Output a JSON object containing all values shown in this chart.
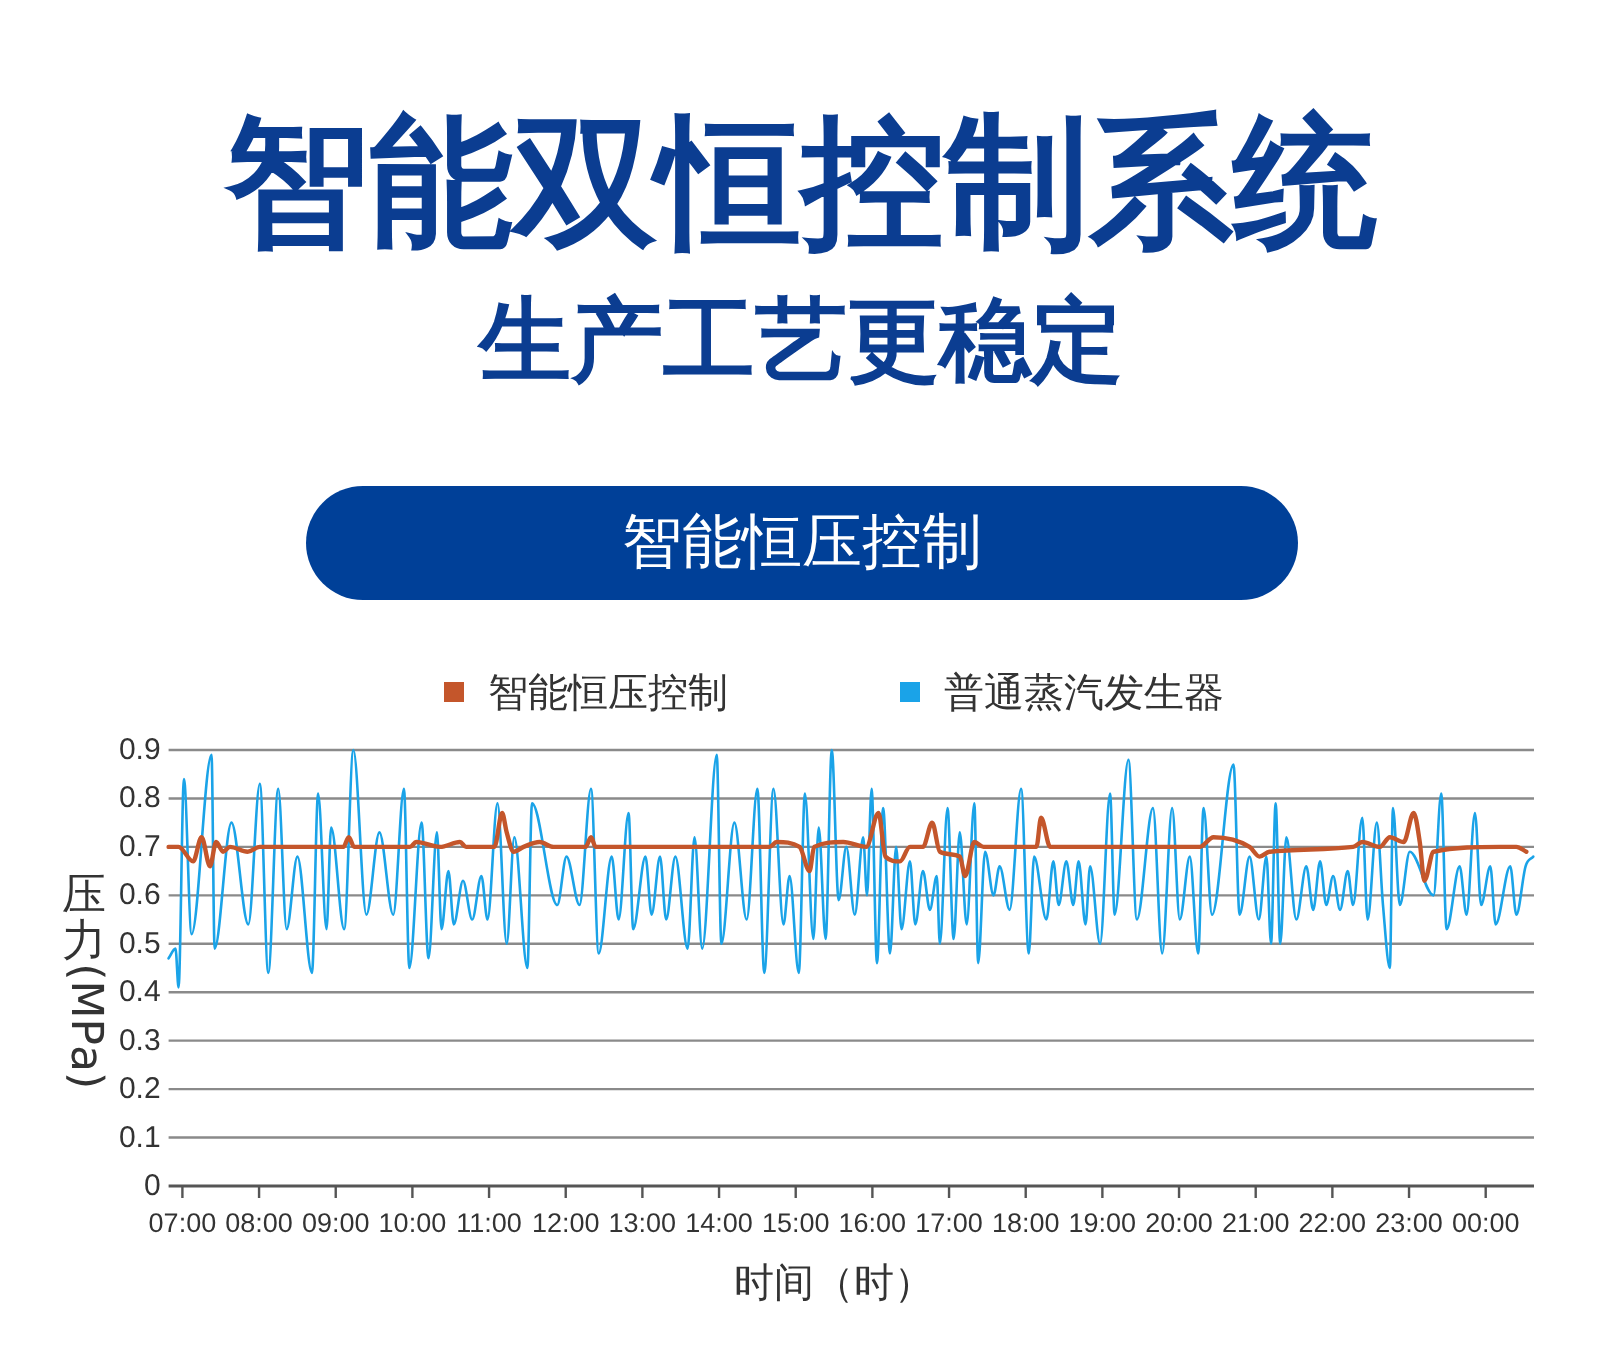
{
  "chart_data": {
    "type": "line",
    "title": "智能双恒控制系统",
    "subtitle": "生产工艺更稳定",
    "annotations": [
      "智能恒压控制"
    ],
    "xlabel": "时间（时）",
    "ylabel": "压力(MPa)",
    "xlim": [
      6.82,
      24.63
    ],
    "xticks": [
      {
        "value": 7,
        "label": "07:00"
      },
      {
        "value": 8,
        "label": "08:00"
      },
      {
        "value": 9,
        "label": "09:00"
      },
      {
        "value": 10,
        "label": "10:00"
      },
      {
        "value": 11,
        "label": "11:00"
      },
      {
        "value": 12,
        "label": "12:00"
      },
      {
        "value": 13,
        "label": "13:00"
      },
      {
        "value": 14,
        "label": "14:00"
      },
      {
        "value": 15,
        "label": "15:00"
      },
      {
        "value": 16,
        "label": "16:00"
      },
      {
        "value": 17,
        "label": "17:00"
      },
      {
        "value": 18,
        "label": "18:00"
      },
      {
        "value": 19,
        "label": "19:00"
      },
      {
        "value": 20,
        "label": "20:00"
      },
      {
        "value": 21,
        "label": "21:00"
      },
      {
        "value": 22,
        "label": "22:00"
      },
      {
        "value": 23,
        "label": "23:00"
      },
      {
        "value": 24,
        "label": "00:00"
      }
    ],
    "ylim": [
      0,
      0.9
    ],
    "yticks": [
      0,
      0.1,
      0.2,
      0.3,
      0.4,
      0.5,
      0.6,
      0.7,
      0.8,
      0.9
    ],
    "grid": "y",
    "legend": "top",
    "line_style": "solid",
    "series": [
      {
        "name": "智能恒压控制",
        "color": "#c4562b",
        "x": [
          6.82,
          6.95,
          7.14,
          7.25,
          7.36,
          7.44,
          7.53,
          7.62,
          7.85,
          8.01,
          9.1,
          9.17,
          9.24,
          9.97,
          10.05,
          10.36,
          10.62,
          10.7,
          11.07,
          11.17,
          11.23,
          11.32,
          11.45,
          11.66,
          11.84,
          12.26,
          12.33,
          12.39,
          14.66,
          14.75,
          15.05,
          15.18,
          15.24,
          15.62,
          15.92,
          16.08,
          16.17,
          16.36,
          16.49,
          16.66,
          16.78,
          16.88,
          17.14,
          17.21,
          17.33,
          17.45,
          18.14,
          18.2,
          18.32,
          20.27,
          20.45,
          20.92,
          21.05,
          21.18,
          22.27,
          22.39,
          22.62,
          22.75,
          22.93,
          23.06,
          23.14,
          23.2,
          23.32,
          24.19,
          24.4,
          24.53
        ],
        "values": [
          0.7,
          0.7,
          0.67,
          0.72,
          0.66,
          0.71,
          0.69,
          0.7,
          0.69,
          0.7,
          0.7,
          0.72,
          0.7,
          0.7,
          0.71,
          0.7,
          0.71,
          0.7,
          0.7,
          0.77,
          0.73,
          0.69,
          0.7,
          0.71,
          0.7,
          0.7,
          0.72,
          0.7,
          0.7,
          0.71,
          0.7,
          0.65,
          0.7,
          0.71,
          0.7,
          0.77,
          0.68,
          0.67,
          0.7,
          0.7,
          0.75,
          0.69,
          0.68,
          0.64,
          0.71,
          0.7,
          0.7,
          0.76,
          0.7,
          0.7,
          0.72,
          0.7,
          0.68,
          0.69,
          0.7,
          0.71,
          0.7,
          0.72,
          0.71,
          0.77,
          0.71,
          0.63,
          0.69,
          0.7,
          0.7,
          0.69
        ]
      },
      {
        "name": "普通蒸汽发生器",
        "color": "#1aa3e8",
        "x": [
          6.82,
          6.91,
          6.95,
          7.02,
          7.12,
          7.38,
          7.42,
          7.64,
          7.86,
          8.01,
          8.12,
          8.25,
          8.36,
          8.5,
          8.69,
          8.77,
          8.88,
          8.94,
          9.11,
          9.23,
          9.4,
          9.57,
          9.75,
          9.89,
          9.96,
          10.12,
          10.21,
          10.32,
          10.38,
          10.47,
          10.54,
          10.66,
          10.78,
          10.9,
          10.98,
          11.11,
          11.23,
          11.33,
          11.5,
          11.56,
          11.89,
          12.01,
          12.18,
          12.33,
          12.43,
          12.6,
          12.69,
          12.82,
          12.88,
          13.04,
          13.12,
          13.23,
          13.31,
          13.43,
          13.59,
          13.68,
          13.78,
          13.97,
          14.03,
          14.2,
          14.36,
          14.5,
          14.59,
          14.71,
          14.84,
          14.92,
          15.04,
          15.12,
          15.23,
          15.3,
          15.39,
          15.47,
          15.56,
          15.66,
          15.77,
          15.88,
          15.93,
          15.99,
          16.06,
          16.14,
          16.23,
          16.31,
          16.38,
          16.49,
          16.56,
          16.66,
          16.75,
          16.84,
          16.88,
          16.98,
          17.06,
          17.14,
          17.23,
          17.33,
          17.38,
          17.47,
          17.58,
          17.66,
          17.79,
          17.94,
          18.04,
          18.11,
          18.27,
          18.36,
          18.43,
          18.53,
          18.62,
          18.69,
          18.78,
          18.84,
          18.97,
          19.1,
          19.16,
          19.34,
          19.45,
          19.66,
          19.78,
          19.91,
          20.01,
          20.14,
          20.25,
          20.32,
          20.43,
          20.71,
          20.79,
          20.92,
          21.04,
          21.14,
          21.2,
          21.26,
          21.32,
          21.4,
          21.53,
          21.66,
          21.75,
          21.84,
          21.92,
          22.01,
          22.1,
          22.2,
          22.27,
          22.39,
          22.46,
          22.58,
          22.66,
          22.75,
          22.79,
          22.88,
          23.01,
          23.32,
          23.42,
          23.49,
          23.66,
          23.75,
          23.86,
          23.94,
          24.06,
          24.13,
          24.32,
          24.4,
          24.52,
          24.62
        ],
        "values": [
          0.47,
          0.49,
          0.41,
          0.84,
          0.52,
          0.89,
          0.49,
          0.75,
          0.54,
          0.83,
          0.44,
          0.82,
          0.53,
          0.68,
          0.44,
          0.81,
          0.53,
          0.74,
          0.53,
          0.9,
          0.56,
          0.73,
          0.56,
          0.82,
          0.45,
          0.75,
          0.47,
          0.73,
          0.53,
          0.65,
          0.54,
          0.63,
          0.55,
          0.64,
          0.55,
          0.79,
          0.5,
          0.72,
          0.45,
          0.79,
          0.58,
          0.68,
          0.58,
          0.82,
          0.48,
          0.68,
          0.55,
          0.77,
          0.53,
          0.68,
          0.56,
          0.68,
          0.55,
          0.68,
          0.49,
          0.72,
          0.49,
          0.89,
          0.5,
          0.75,
          0.55,
          0.82,
          0.44,
          0.82,
          0.54,
          0.64,
          0.44,
          0.81,
          0.51,
          0.74,
          0.51,
          0.9,
          0.59,
          0.7,
          0.56,
          0.72,
          0.6,
          0.82,
          0.46,
          0.78,
          0.48,
          0.7,
          0.53,
          0.67,
          0.54,
          0.65,
          0.57,
          0.64,
          0.5,
          0.78,
          0.51,
          0.73,
          0.54,
          0.79,
          0.46,
          0.69,
          0.6,
          0.66,
          0.57,
          0.82,
          0.48,
          0.68,
          0.55,
          0.67,
          0.58,
          0.67,
          0.58,
          0.67,
          0.54,
          0.66,
          0.5,
          0.81,
          0.56,
          0.88,
          0.55,
          0.78,
          0.48,
          0.78,
          0.55,
          0.68,
          0.48,
          0.78,
          0.56,
          0.87,
          0.56,
          0.68,
          0.55,
          0.68,
          0.5,
          0.79,
          0.5,
          0.72,
          0.55,
          0.66,
          0.57,
          0.67,
          0.58,
          0.64,
          0.57,
          0.65,
          0.58,
          0.76,
          0.55,
          0.75,
          0.58,
          0.45,
          0.78,
          0.58,
          0.69,
          0.6,
          0.81,
          0.53,
          0.66,
          0.56,
          0.77,
          0.58,
          0.66,
          0.54,
          0.66,
          0.56,
          0.66,
          0.68
        ]
      }
    ]
  }
}
